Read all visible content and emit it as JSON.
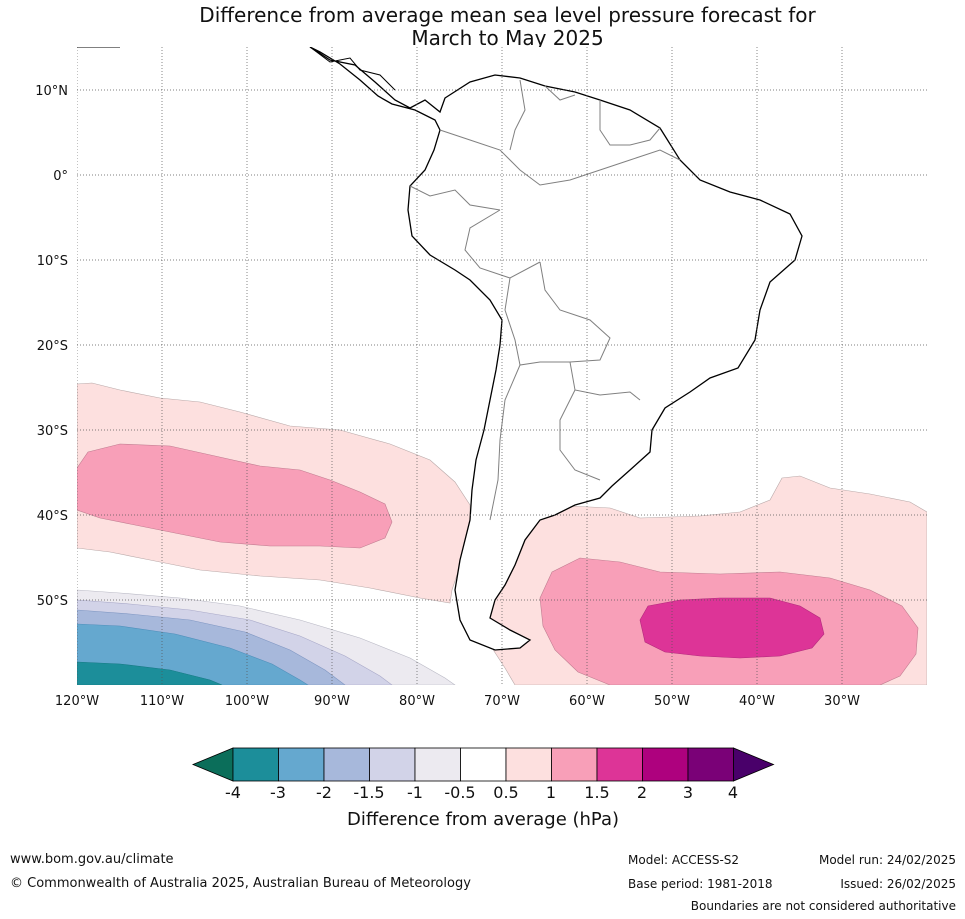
{
  "title": {
    "line1": "Difference from average mean sea level pressure forecast for",
    "line2": "March to May 2025"
  },
  "map": {
    "region": "South America",
    "lat_labels": [
      "10°N",
      "0°",
      "10°S",
      "20°S",
      "30°S",
      "40°S",
      "50°S"
    ],
    "lon_labels": [
      "120°W",
      "110°W",
      "100°W",
      "90°W",
      "80°W",
      "70°W",
      "60°W",
      "50°W",
      "40°W",
      "30°W"
    ],
    "gridlines": "dotted"
  },
  "colorbar": {
    "title": "Difference from average (hPa)",
    "tick_labels": [
      "-4",
      "-3",
      "-2",
      "-1.5",
      "-1",
      "-0.5",
      "0.5",
      "1",
      "1.5",
      "2",
      "3",
      "4"
    ],
    "bins": [
      {
        "range": "< -4",
        "color": "#0b6e5a"
      },
      {
        "range": "-4 to -3",
        "color": "#1c8e9a"
      },
      {
        "range": "-3 to -2",
        "color": "#65a8cf"
      },
      {
        "range": "-2 to -1.5",
        "color": "#a7b8db"
      },
      {
        "range": "-1.5 to -1",
        "color": "#d2d3e8"
      },
      {
        "range": "-1 to -0.5",
        "color": "#eceaf0"
      },
      {
        "range": "-0.5 to 0.5",
        "color": "#ffffff"
      },
      {
        "range": "0.5 to 1",
        "color": "#fde0df"
      },
      {
        "range": "1 to 1.5",
        "color": "#f89fb8"
      },
      {
        "range": "1.5 to 2",
        "color": "#dd3497"
      },
      {
        "range": "2 to 3",
        "color": "#ae017e"
      },
      {
        "range": "3 to 4",
        "color": "#7a0177"
      },
      {
        "range": "> 4",
        "color": "#49006a"
      }
    ]
  },
  "footer": {
    "url": "www.bom.gov.au/climate",
    "copyright": "© Commonwealth of Australia 2025, Australian Bureau of Meteorology",
    "model": "Model: ACCESS-S2",
    "base_period": "Base period: 1981-2018",
    "model_run": "Model run: 24/02/2025",
    "issued": "Issued: 26/02/2025",
    "disclaimer": "Boundaries are not considered authoritative"
  }
}
